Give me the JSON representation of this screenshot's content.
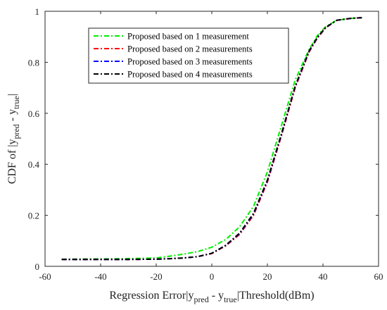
{
  "chart_data": {
    "type": "line",
    "title": "",
    "xlabel": {
      "main": "Regression Error|y",
      "sub1": "pred",
      "mid": " - y",
      "sub2": "true",
      "tail": "|Threshold(dBm)"
    },
    "ylabel": {
      "main": "CDF of |y",
      "sub1": "pred",
      "mid": " - y",
      "sub2": "true",
      "tail": "|"
    },
    "xlim": [
      -60,
      60
    ],
    "ylim": [
      0,
      1
    ],
    "xticks": [
      "-60",
      "-40",
      "-20",
      "0",
      "20",
      "40",
      "60"
    ],
    "yticks": [
      "0",
      "0.2",
      "0.4",
      "0.6",
      "0.8",
      "1"
    ],
    "grid": false,
    "legend_position": "top-left",
    "series": [
      {
        "name": "Proposed based on 1 measurement",
        "color": "#00ee00",
        "dash": "dash-dot",
        "x": [
          -54,
          -40,
          -30,
          -20,
          -15,
          -10,
          -5,
          0,
          5,
          10,
          15,
          20,
          25,
          30,
          35,
          38,
          41,
          45,
          50,
          54
        ],
        "y": [
          0.028,
          0.029,
          0.03,
          0.033,
          0.04,
          0.048,
          0.058,
          0.075,
          0.105,
          0.155,
          0.235,
          0.37,
          0.55,
          0.73,
          0.85,
          0.905,
          0.94,
          0.965,
          0.972,
          0.975
        ]
      },
      {
        "name": "Proposed based on 2 measurements",
        "color": "#ff0000",
        "dash": "dash-dot",
        "x": [
          -54,
          -40,
          -30,
          -20,
          -15,
          -10,
          -5,
          0,
          5,
          10,
          15,
          20,
          25,
          30,
          35,
          38,
          41,
          45,
          50,
          54
        ],
        "y": [
          0.027,
          0.027,
          0.027,
          0.028,
          0.03,
          0.033,
          0.038,
          0.05,
          0.08,
          0.125,
          0.2,
          0.33,
          0.51,
          0.7,
          0.84,
          0.895,
          0.935,
          0.965,
          0.972,
          0.975
        ]
      },
      {
        "name": "Proposed based on 3 measurements",
        "color": "#0000ff",
        "dash": "dash-dot",
        "x": [
          -54,
          -40,
          -30,
          -20,
          -15,
          -10,
          -5,
          0,
          5,
          10,
          15,
          20,
          25,
          30,
          35,
          38,
          41,
          45,
          50,
          54
        ],
        "y": [
          0.027,
          0.027,
          0.027,
          0.028,
          0.03,
          0.033,
          0.038,
          0.051,
          0.082,
          0.128,
          0.205,
          0.335,
          0.515,
          0.705,
          0.843,
          0.897,
          0.936,
          0.965,
          0.972,
          0.975
        ]
      },
      {
        "name": "Proposed based on 4 measurements",
        "color": "#000000",
        "dash": "dash-dot",
        "x": [
          -54,
          -40,
          -30,
          -20,
          -15,
          -10,
          -5,
          0,
          5,
          10,
          15,
          20,
          25,
          30,
          35,
          38,
          41,
          45,
          50,
          54
        ],
        "y": [
          0.027,
          0.027,
          0.027,
          0.028,
          0.03,
          0.033,
          0.038,
          0.051,
          0.083,
          0.13,
          0.208,
          0.338,
          0.518,
          0.707,
          0.845,
          0.898,
          0.937,
          0.965,
          0.972,
          0.975
        ]
      }
    ]
  }
}
